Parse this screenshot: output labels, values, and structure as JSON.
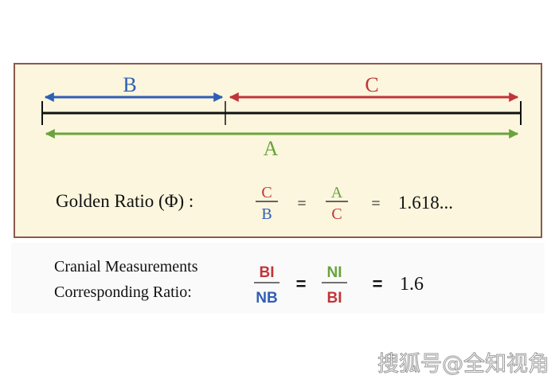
{
  "colors": {
    "blue": "#2f5fb5",
    "red": "#c0353a",
    "green": "#6aa33d",
    "black": "#111111",
    "panel": "#fbf6dd",
    "border": "#8b5a4c"
  },
  "segments": {
    "b_label": "B",
    "c_label": "C",
    "a_label": "A"
  },
  "golden": {
    "label": "Golden Ratio (Φ) :",
    "frac1_num": "C",
    "frac1_den": "B",
    "eq1": "=",
    "frac2_num": "A",
    "frac2_den": "C",
    "eq2": "=",
    "value": "1.618..."
  },
  "cranial": {
    "line1": "Cranial Measurements",
    "line2": "Corresponding Ratio:",
    "frac1_num": "BI",
    "frac1_den": "NB",
    "eq1": "=",
    "frac2_num": "NI",
    "frac2_den": "BI",
    "eq2": "=",
    "value": "1.6"
  },
  "watermark": "搜狐号@全知视角"
}
